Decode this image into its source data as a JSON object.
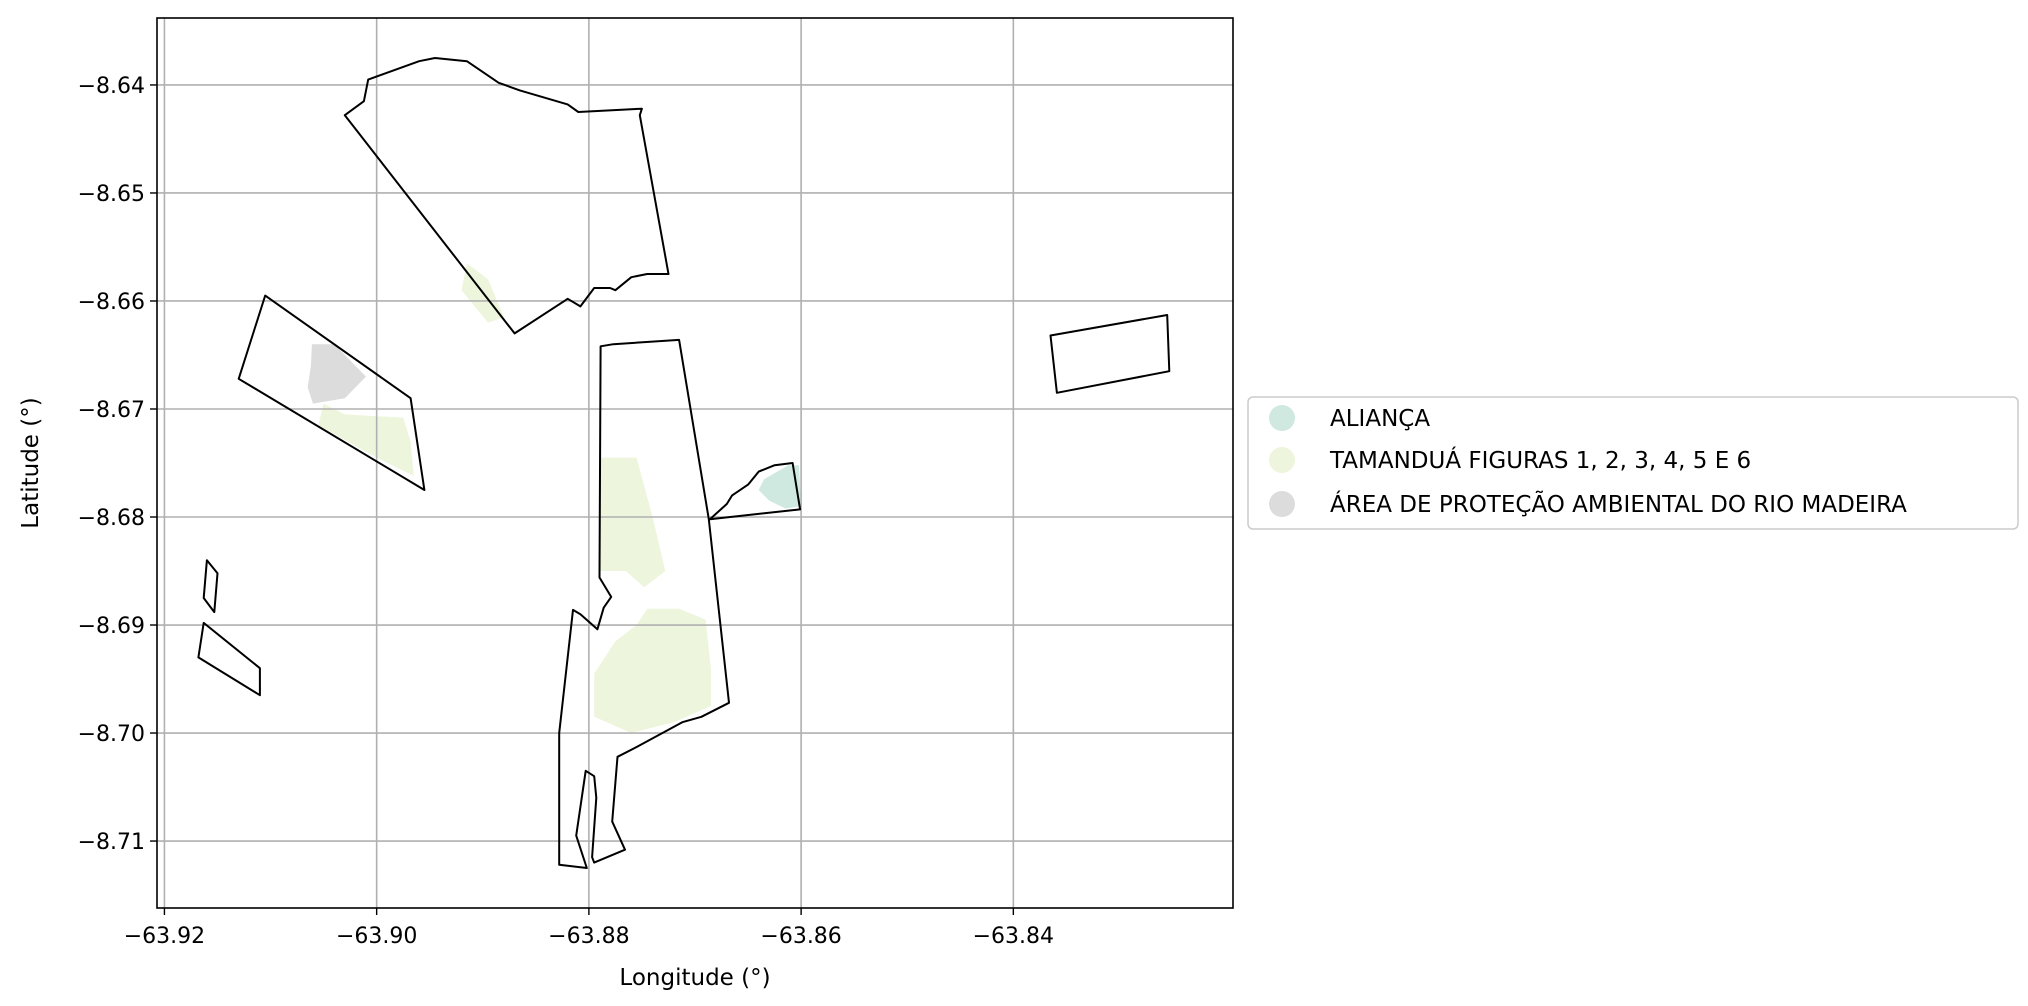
{
  "chart_data": {
    "type": "map",
    "xlabel": "Longitude (°)",
    "ylabel": "Latitude (°)",
    "xlim": [
      -63.9207,
      -63.8193
    ],
    "ylim": [
      -8.7162,
      -8.6338
    ],
    "xticks": [
      -63.92,
      -63.9,
      -63.88,
      -63.86,
      -63.84
    ],
    "xtick_labels": [
      "−63.92",
      "−63.90",
      "−63.88",
      "−63.86",
      "−63.84"
    ],
    "yticks": [
      -8.64,
      -8.65,
      -8.66,
      -8.67,
      -8.68,
      -8.69,
      -8.7,
      -8.71
    ],
    "ytick_labels": [
      "−8.64",
      "−8.65",
      "−8.66",
      "−8.67",
      "−8.68",
      "−8.69",
      "−8.70",
      "−8.71"
    ],
    "grid": true,
    "legend_position": "center-right, outside plot",
    "legend": [
      {
        "label": "ALIANÇA",
        "color": "#cfe9e0"
      },
      {
        "label": "TAMANDUÁ FIGURAS 1, 2, 3, 4, 5 E 6",
        "color": "#edf6dc"
      },
      {
        "label": "ÁREA DE PROTEÇÃO AMBIENTAL DO RIO MADEIRA",
        "color": "#dcdcdc"
      }
    ],
    "filled_areas": [
      {
        "category": "ÁREA DE PROTEÇÃO AMBIENTAL DO RIO MADEIRA",
        "coords": [
          [
            -63.9061,
            -8.664
          ],
          [
            -63.904,
            -8.664
          ],
          [
            -63.9025,
            -8.6655
          ],
          [
            -63.901,
            -8.667
          ],
          [
            -63.903,
            -8.669
          ],
          [
            -63.906,
            -8.6695
          ],
          [
            -63.9065,
            -8.668
          ],
          [
            -63.9062,
            -8.666
          ]
        ]
      },
      {
        "category": "TAMANDUÁ FIGURAS 1, 2, 3, 4, 5 E 6",
        "coords": [
          [
            -63.905,
            -8.6695
          ],
          [
            -63.903,
            -8.6705
          ],
          [
            -63.8975,
            -8.6708
          ],
          [
            -63.8968,
            -8.673
          ],
          [
            -63.8965,
            -8.6762
          ],
          [
            -63.9,
            -8.6745
          ],
          [
            -63.9055,
            -8.6715
          ]
        ]
      },
      {
        "category": "TAMANDUÁ FIGURAS 1, 2, 3, 4, 5 E 6",
        "coords": [
          [
            -63.8915,
            -8.6565
          ],
          [
            -63.8895,
            -8.658
          ],
          [
            -63.888,
            -8.6615
          ],
          [
            -63.8895,
            -8.662
          ],
          [
            -63.892,
            -8.659
          ]
        ]
      },
      {
        "category": "TAMANDUÁ FIGURAS 1, 2, 3, 4, 5 E 6",
        "coords": [
          [
            -63.879,
            -8.6745
          ],
          [
            -63.8755,
            -8.6745
          ],
          [
            -63.874,
            -8.68
          ],
          [
            -63.8728,
            -8.685
          ],
          [
            -63.8748,
            -8.6865
          ],
          [
            -63.8765,
            -8.685
          ],
          [
            -63.879,
            -8.685
          ]
        ]
      },
      {
        "category": "TAMANDUÁ FIGURAS 1, 2, 3, 4, 5 E 6",
        "coords": [
          [
            -63.8745,
            -8.6885
          ],
          [
            -63.8715,
            -8.6885
          ],
          [
            -63.869,
            -8.6895
          ],
          [
            -63.8685,
            -8.694
          ],
          [
            -63.8685,
            -8.6975
          ],
          [
            -63.872,
            -8.699
          ],
          [
            -63.876,
            -8.7
          ],
          [
            -63.8795,
            -8.6985
          ],
          [
            -63.8795,
            -8.6945
          ],
          [
            -63.8775,
            -8.6915
          ],
          [
            -63.8755,
            -8.69
          ]
        ]
      },
      {
        "category": "ALIANÇA",
        "coords": [
          [
            -63.8612,
            -8.6752
          ],
          [
            -63.8602,
            -8.6752
          ],
          [
            -63.86,
            -8.679
          ],
          [
            -63.8615,
            -8.6792
          ],
          [
            -63.863,
            -8.6785
          ],
          [
            -63.864,
            -8.6775
          ],
          [
            -63.8635,
            -8.6765
          ]
        ]
      }
    ],
    "outlines": [
      {
        "name": "north block",
        "coords": [
          [
            -63.903,
            -8.6428
          ],
          [
            -63.9012,
            -8.6415
          ],
          [
            -63.9008,
            -8.6395
          ],
          [
            -63.896,
            -8.6378
          ],
          [
            -63.8945,
            -8.6375
          ],
          [
            -63.8915,
            -8.6378
          ],
          [
            -63.8885,
            -8.6398
          ],
          [
            -63.8865,
            -8.6405
          ],
          [
            -63.882,
            -8.6418
          ],
          [
            -63.881,
            -8.6425
          ],
          [
            -63.875,
            -8.6422
          ],
          [
            -63.8752,
            -8.6428
          ],
          [
            -63.8725,
            -8.6575
          ],
          [
            -63.8745,
            -8.6575
          ],
          [
            -63.876,
            -8.6578
          ],
          [
            -63.8775,
            -8.659
          ],
          [
            -63.878,
            -8.6588
          ],
          [
            -63.8795,
            -8.6588
          ],
          [
            -63.8808,
            -8.6605
          ],
          [
            -63.882,
            -8.6598
          ],
          [
            -63.887,
            -8.663
          ],
          [
            -63.903,
            -8.6428
          ]
        ]
      },
      {
        "name": "west parallelogram",
        "coords": [
          [
            -63.9105,
            -8.6595
          ],
          [
            -63.8968,
            -8.669
          ],
          [
            -63.8955,
            -8.6775
          ],
          [
            -63.913,
            -8.6672
          ],
          [
            -63.9105,
            -8.6595
          ]
        ]
      },
      {
        "name": "small west quad",
        "coords": [
          [
            -63.916,
            -8.684
          ],
          [
            -63.915,
            -8.6852
          ],
          [
            -63.9153,
            -8.6888
          ],
          [
            -63.9163,
            -8.6875
          ],
          [
            -63.916,
            -8.684
          ]
        ]
      },
      {
        "name": "southwest quad",
        "coords": [
          [
            -63.9163,
            -8.6898
          ],
          [
            -63.9168,
            -8.693
          ],
          [
            -63.911,
            -8.6965
          ],
          [
            -63.911,
            -8.694
          ],
          [
            -63.9163,
            -8.6898
          ]
        ]
      },
      {
        "name": "central south block",
        "coords": [
          [
            -63.8789,
            -8.6642
          ],
          [
            -63.8777,
            -8.664
          ],
          [
            -63.8715,
            -8.6636
          ],
          [
            -63.8687,
            -8.6802
          ],
          [
            -63.8668,
            -8.6972
          ],
          [
            -63.8694,
            -8.6985
          ],
          [
            -63.8712,
            -8.699
          ],
          [
            -63.8757,
            -8.7014
          ],
          [
            -63.8773,
            -8.7022
          ],
          [
            -63.8778,
            -8.7082
          ],
          [
            -63.8766,
            -8.7108
          ],
          [
            -63.8795,
            -8.712
          ],
          [
            -63.8797,
            -8.7115
          ],
          [
            -63.8793,
            -8.706
          ],
          [
            -63.8795,
            -8.704
          ],
          [
            -63.8795,
            -8.704
          ],
          [
            -63.8803,
            -8.7035
          ],
          [
            -63.8812,
            -8.7095
          ],
          [
            -63.8802,
            -8.7125
          ],
          [
            -63.8828,
            -8.7122
          ],
          [
            -63.8828,
            -8.7
          ],
          [
            -63.8815,
            -8.6886
          ],
          [
            -63.8808,
            -8.689
          ],
          [
            -63.8792,
            -8.6904
          ],
          [
            -63.8786,
            -8.6884
          ],
          [
            -63.8779,
            -8.6874
          ],
          [
            -63.879,
            -8.6856
          ],
          [
            -63.8789,
            -8.6642
          ]
        ]
      },
      {
        "name": "east connector",
        "coords": [
          [
            -63.8686,
            -8.6802
          ],
          [
            -63.867,
            -8.6788
          ],
          [
            -63.8665,
            -8.678
          ],
          [
            -63.865,
            -8.677
          ],
          [
            -63.864,
            -8.6758
          ],
          [
            -63.8625,
            -8.6752
          ],
          [
            -63.8608,
            -8.675
          ],
          [
            -63.8601,
            -8.6793
          ],
          [
            -63.8686,
            -8.6802
          ]
        ]
      },
      {
        "name": "far east quad",
        "coords": [
          [
            -63.8365,
            -8.6632
          ],
          [
            -63.8255,
            -8.6613
          ],
          [
            -63.8253,
            -8.6665
          ],
          [
            -63.8359,
            -8.6685
          ],
          [
            -63.8365,
            -8.6632
          ]
        ]
      }
    ]
  }
}
